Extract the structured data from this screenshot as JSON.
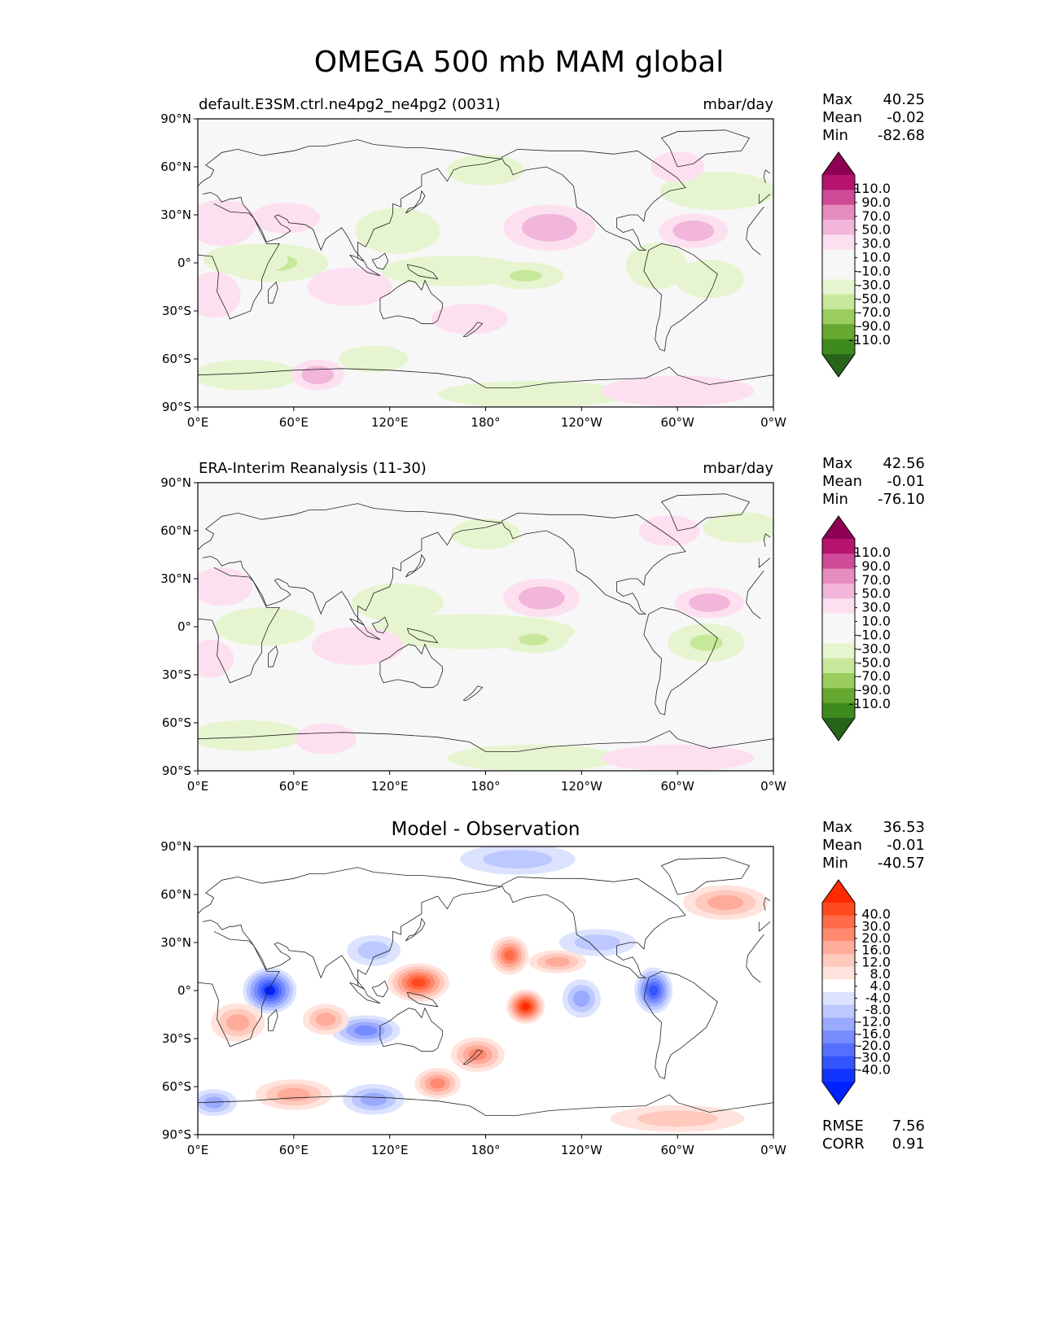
{
  "figure": {
    "title": "OMEGA 500 mb MAM global"
  },
  "axes": {
    "lat_ticks": [
      "90°N",
      "60°N",
      "30°N",
      "0°",
      "30°S",
      "60°S",
      "90°S"
    ],
    "lon_ticks": [
      "0°E",
      "60°E",
      "120°E",
      "180°",
      "120°W",
      "60°W",
      "0°W"
    ]
  },
  "panels": [
    {
      "id": "test",
      "title_left": "default.E3SM.ctrl.ne4pg2_ne4pg2 (0031)",
      "title_right": "mbar/day",
      "stats": [
        {
          "label": "Max",
          "value": "40.25"
        },
        {
          "label": "Mean",
          "value": "-0.02"
        },
        {
          "label": "Min",
          "value": "-82.68"
        }
      ],
      "colorbar": "omega"
    },
    {
      "id": "reference",
      "title_left": "ERA-Interim Reanalysis (11-30)",
      "title_right": "mbar/day",
      "stats": [
        {
          "label": "Max",
          "value": "42.56"
        },
        {
          "label": "Mean",
          "value": "-0.01"
        },
        {
          "label": "Min",
          "value": "-76.10"
        }
      ],
      "colorbar": "omega"
    },
    {
      "id": "diff",
      "title_center": "Model - Observation",
      "stats": [
        {
          "label": "Max",
          "value": "36.53"
        },
        {
          "label": "Mean",
          "value": "-0.01"
        },
        {
          "label": "Min",
          "value": "-40.57"
        }
      ],
      "colorbar": "diff",
      "metrics": [
        {
          "label": "RMSE",
          "value": "7.56"
        },
        {
          "label": "CORR",
          "value": "0.91"
        }
      ]
    }
  ],
  "colorbars": {
    "omega": {
      "labels": [
        "110.0",
        "90.0",
        "70.0",
        "50.0",
        "30.0",
        "10.0",
        "-10.0",
        "-30.0",
        "-50.0",
        "-70.0",
        "-90.0",
        "-110.0"
      ],
      "colors": [
        "#8e0152",
        "#c51b7d",
        "#de77ae",
        "#f1b6da",
        "#fde0ef",
        "#f7f7f7",
        "#e6f5d0",
        "#b8e186",
        "#7fbc41",
        "#4d9221",
        "#276419"
      ],
      "colors_list": [
        "#8e0152",
        "#b5136e",
        "#d04b97",
        "#e68dc0",
        "#f1b6da",
        "#fde0ef",
        "#f7f7f7",
        "#f7f7f7",
        "#e6f5d0",
        "#c7e89a",
        "#9acd5e",
        "#66a830",
        "#3f8a1d",
        "#276419"
      ]
    },
    "diff": {
      "labels": [
        "40.0",
        "30.0",
        "20.0",
        "16.0",
        "12.0",
        "8.0",
        "4.0",
        "-4.0",
        "-8.0",
        "-12.0",
        "-16.0",
        "-20.0",
        "-30.0",
        "-40.0"
      ],
      "colors_list": [
        "#ff2a00",
        "#ff4a1f",
        "#ff6a47",
        "#ff8a70",
        "#ffab99",
        "#ffc9bd",
        "#ffe3dc",
        "#ffffff",
        "#dce3ff",
        "#bcc8ff",
        "#99aaff",
        "#778cff",
        "#5570ff",
        "#3355ff",
        "#1134ff",
        "#0022ff"
      ]
    }
  },
  "chart_data": {
    "type": "heatmap",
    "title": "OMEGA 500 mb MAM global",
    "units": "mbar/day",
    "x_range": [
      0,
      360
    ],
    "y_range": [
      -90,
      90
    ],
    "grid": false,
    "panels": [
      {
        "name": "default.E3SM.ctrl.ne4pg2_ne4pg2 (0031)",
        "features": [
          {
            "lon": 48,
            "lat": 0,
            "rlon": 28,
            "rlat": 10,
            "value": -55
          },
          {
            "lon": 30,
            "lat": 2,
            "rlon": 22,
            "rlat": 8,
            "value": -25
          },
          {
            "lon": 160,
            "lat": -5,
            "rlon": 38,
            "rlat": 8,
            "value": -25
          },
          {
            "lon": 205,
            "lat": -8,
            "rlon": 20,
            "rlat": 7,
            "value": -60
          },
          {
            "lon": 287,
            "lat": -2,
            "rlon": 16,
            "rlat": 12,
            "value": -30
          },
          {
            "lon": 320,
            "lat": -10,
            "rlon": 18,
            "rlat": 10,
            "value": -40
          },
          {
            "lon": 125,
            "lat": 20,
            "rlon": 22,
            "rlat": 12,
            "value": -15
          },
          {
            "lon": 180,
            "lat": 58,
            "rlon": 20,
            "rlat": 8,
            "value": -15
          },
          {
            "lon": 325,
            "lat": 45,
            "rlon": 30,
            "rlat": 10,
            "value": -15
          },
          {
            "lon": 30,
            "lat": -70,
            "rlon": 28,
            "rlat": 8,
            "value": -25
          },
          {
            "lon": 210,
            "lat": -82,
            "rlon": 50,
            "rlat": 7,
            "value": -15
          },
          {
            "lon": 110,
            "lat": -60,
            "rlon": 18,
            "rlat": 7,
            "value": -15
          },
          {
            "lon": 220,
            "lat": 22,
            "rlon": 24,
            "rlat": 12,
            "value": 30
          },
          {
            "lon": 310,
            "lat": 20,
            "rlon": 18,
            "rlat": 9,
            "value": 30
          },
          {
            "lon": 15,
            "lat": 25,
            "rlon": 18,
            "rlat": 12,
            "value": 25
          },
          {
            "lon": 10,
            "lat": -20,
            "rlon": 14,
            "rlat": 12,
            "value": 20
          },
          {
            "lon": 55,
            "lat": 28,
            "rlon": 18,
            "rlat": 8,
            "value": 15
          },
          {
            "lon": 75,
            "lat": -70,
            "rlon": 14,
            "rlat": 8,
            "value": 30
          },
          {
            "lon": 300,
            "lat": -80,
            "rlon": 40,
            "rlat": 8,
            "value": 15
          },
          {
            "lon": 170,
            "lat": -35,
            "rlon": 20,
            "rlat": 8,
            "value": 15
          },
          {
            "lon": 95,
            "lat": -15,
            "rlon": 22,
            "rlat": 10,
            "value": 15
          },
          {
            "lon": 300,
            "lat": 60,
            "rlon": 14,
            "rlat": 8,
            "value": 20
          }
        ]
      },
      {
        "name": "ERA-Interim Reanalysis (11-30)",
        "features": [
          {
            "lon": 42,
            "lat": 0,
            "rlon": 26,
            "rlat": 10,
            "value": -40
          },
          {
            "lon": 170,
            "lat": -3,
            "rlon": 55,
            "rlat": 9,
            "value": -30
          },
          {
            "lon": 210,
            "lat": -8,
            "rlon": 18,
            "rlat": 7,
            "value": -55
          },
          {
            "lon": 318,
            "lat": -10,
            "rlon": 20,
            "rlat": 10,
            "value": -50
          },
          {
            "lon": 125,
            "lat": 15,
            "rlon": 24,
            "rlat": 10,
            "value": -20
          },
          {
            "lon": 180,
            "lat": 58,
            "rlon": 18,
            "rlat": 8,
            "value": -15
          },
          {
            "lon": 340,
            "lat": 62,
            "rlon": 20,
            "rlat": 8,
            "value": -15
          },
          {
            "lon": 30,
            "lat": -68,
            "rlon": 30,
            "rlat": 8,
            "value": -25
          },
          {
            "lon": 210,
            "lat": -82,
            "rlon": 45,
            "rlat": 7,
            "value": -15
          },
          {
            "lon": 215,
            "lat": 18,
            "rlon": 20,
            "rlat": 10,
            "value": 30
          },
          {
            "lon": 320,
            "lat": 15,
            "rlon": 18,
            "rlat": 8,
            "value": 30
          },
          {
            "lon": 15,
            "lat": 25,
            "rlon": 16,
            "rlat": 10,
            "value": 20
          },
          {
            "lon": 8,
            "lat": -20,
            "rlon": 12,
            "rlat": 10,
            "value": 25
          },
          {
            "lon": 80,
            "lat": -70,
            "rlon": 16,
            "rlat": 8,
            "value": 15
          },
          {
            "lon": 300,
            "lat": -82,
            "rlon": 40,
            "rlat": 7,
            "value": 15
          },
          {
            "lon": 100,
            "lat": -12,
            "rlon": 24,
            "rlat": 10,
            "value": 15
          },
          {
            "lon": 295,
            "lat": 60,
            "rlon": 16,
            "rlat": 8,
            "value": 20
          }
        ]
      },
      {
        "name": "Model - Observation",
        "features": [
          {
            "lon": 45,
            "lat": 0,
            "rlon": 14,
            "rlat": 12,
            "value": -40
          },
          {
            "lon": 285,
            "lat": 0,
            "rlon": 10,
            "rlat": 12,
            "value": -30
          },
          {
            "lon": 138,
            "lat": 5,
            "rlon": 16,
            "rlat": 10,
            "value": 30
          },
          {
            "lon": 205,
            "lat": -10,
            "rlon": 10,
            "rlat": 9,
            "value": 40
          },
          {
            "lon": 195,
            "lat": 22,
            "rlon": 10,
            "rlat": 10,
            "value": 20
          },
          {
            "lon": 105,
            "lat": -25,
            "rlon": 18,
            "rlat": 8,
            "value": -16
          },
          {
            "lon": 175,
            "lat": -40,
            "rlon": 14,
            "rlat": 9,
            "value": 16
          },
          {
            "lon": 225,
            "lat": 18,
            "rlon": 15,
            "rlat": 6,
            "value": 12
          },
          {
            "lon": 200,
            "lat": 82,
            "rlon": 30,
            "rlat": 8,
            "value": -8
          },
          {
            "lon": 60,
            "lat": -65,
            "rlon": 20,
            "rlat": 8,
            "value": 12
          },
          {
            "lon": 110,
            "lat": -68,
            "rlon": 16,
            "rlat": 8,
            "value": -12
          },
          {
            "lon": 10,
            "lat": -70,
            "rlon": 12,
            "rlat": 7,
            "value": -12
          },
          {
            "lon": 240,
            "lat": -5,
            "rlon": 10,
            "rlat": 10,
            "value": -12
          },
          {
            "lon": 110,
            "lat": 25,
            "rlon": 14,
            "rlat": 8,
            "value": -8
          },
          {
            "lon": 250,
            "lat": 30,
            "rlon": 20,
            "rlat": 7,
            "value": -8
          },
          {
            "lon": 25,
            "lat": -20,
            "rlon": 14,
            "rlat": 10,
            "value": 12
          },
          {
            "lon": 330,
            "lat": 55,
            "rlon": 22,
            "rlat": 9,
            "value": 12
          },
          {
            "lon": 300,
            "lat": -80,
            "rlon": 35,
            "rlat": 7,
            "value": 8
          },
          {
            "lon": 80,
            "lat": -18,
            "rlon": 12,
            "rlat": 8,
            "value": 12
          },
          {
            "lon": 150,
            "lat": -58,
            "rlon": 12,
            "rlat": 8,
            "value": 16
          }
        ]
      }
    ]
  }
}
